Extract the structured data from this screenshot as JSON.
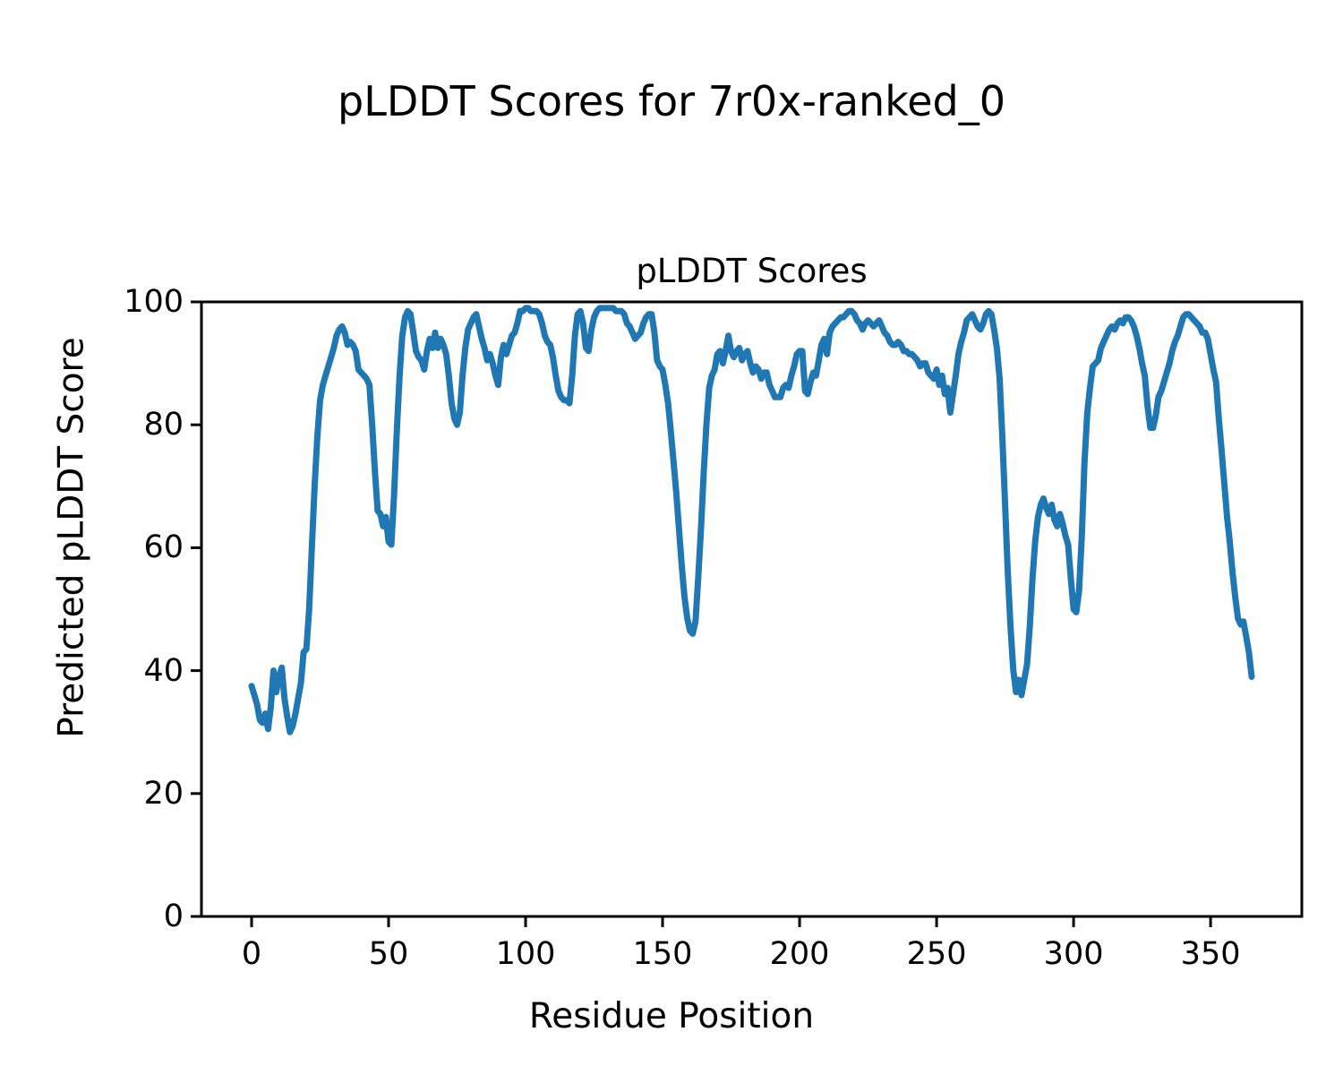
{
  "figure": {
    "suptitle": "pLDDT Scores for 7r0x-ranked_0",
    "background_color": "#ffffff",
    "text_color": "#000000"
  },
  "chart_data": {
    "type": "line",
    "title": "pLDDT Scores",
    "xlabel": "Residue Position",
    "ylabel": "Predicted pLDDT Score",
    "xlim": [
      -18.3,
      383.3
    ],
    "ylim": [
      0,
      100
    ],
    "xticks": [
      0,
      50,
      100,
      150,
      200,
      250,
      300,
      350
    ],
    "yticks": [
      0,
      20,
      40,
      60,
      80,
      100
    ],
    "grid": false,
    "legend": "none",
    "line_color": "#1f77b4",
    "spine_color": "#000000",
    "series": [
      {
        "name": "pLDDT",
        "x_start": 0,
        "x_step": 1,
        "values": [
          37.5,
          36,
          34.5,
          32,
          31.5,
          33,
          30.5,
          34,
          40,
          36.5,
          39,
          40.5,
          35.5,
          32.5,
          30,
          31,
          33,
          35.5,
          38,
          43,
          43.5,
          50,
          60,
          70,
          78,
          84,
          86.5,
          88,
          89.5,
          91,
          92.5,
          94.5,
          95.5,
          96,
          95,
          93,
          93.5,
          93,
          92,
          89,
          88.5,
          88,
          87.5,
          86.5,
          80,
          72.5,
          66,
          65.5,
          63.5,
          65,
          61,
          60.5,
          68.5,
          79,
          88,
          94.5,
          97.5,
          98.5,
          98,
          95,
          92,
          91,
          90.5,
          89,
          92,
          94,
          92.5,
          95,
          92.5,
          94,
          93,
          91.5,
          88,
          83.5,
          81,
          80,
          82,
          88,
          92.5,
          95.5,
          96.5,
          97.5,
          98,
          96,
          94,
          92.5,
          90.5,
          91.5,
          90,
          88,
          86.5,
          91,
          93,
          91.5,
          93,
          94.5,
          95,
          96.5,
          98.5,
          98.5,
          99,
          99,
          98.5,
          98.5,
          98.5,
          98,
          96.5,
          94.5,
          93.5,
          93,
          91,
          88,
          85.5,
          84.5,
          84,
          84,
          83.5,
          88,
          94.5,
          98,
          98.5,
          96.5,
          92.5,
          92,
          95.5,
          97.5,
          98.5,
          99,
          99,
          99,
          99,
          99,
          99,
          98.5,
          98.5,
          98.5,
          98,
          96.5,
          96,
          95,
          94,
          94.5,
          95,
          96.5,
          97.5,
          98,
          98,
          95,
          90.5,
          89.5,
          89,
          86.5,
          83.5,
          79,
          74,
          69,
          63,
          57,
          52,
          48.5,
          46.5,
          46,
          48,
          55,
          63,
          72,
          80,
          86,
          88,
          89,
          91.5,
          92,
          90,
          92,
          94.5,
          92,
          91,
          92,
          92.5,
          90.5,
          91.5,
          92,
          90,
          88.5,
          89.5,
          89,
          87.5,
          88.5,
          88.5,
          86.5,
          85.5,
          84.5,
          84.5,
          84.5,
          86,
          86.5,
          86,
          88,
          89.5,
          91.5,
          92,
          92,
          85.5,
          85,
          87,
          88.5,
          88,
          90.5,
          93,
          94,
          91.5,
          95,
          96,
          96.5,
          97,
          97.5,
          97.5,
          98,
          98.5,
          98.5,
          98,
          97,
          96.5,
          95.5,
          96.5,
          97,
          96.5,
          96,
          96.5,
          97,
          96,
          95,
          94.5,
          93.5,
          93,
          93,
          93.5,
          93,
          92,
          92,
          91.5,
          91.5,
          91,
          90.5,
          89.5,
          90,
          90,
          88.5,
          88,
          87.5,
          89,
          86.5,
          88,
          85,
          86,
          82,
          85,
          88,
          91.5,
          93.5,
          95,
          97,
          97.5,
          98,
          97,
          96,
          95.5,
          96.5,
          98,
          98.5,
          98,
          95.5,
          92.5,
          87.5,
          78,
          67,
          56,
          47,
          40,
          36.5,
          38.5,
          36,
          38.5,
          41,
          47,
          55,
          61,
          65,
          67,
          68,
          66.5,
          65.5,
          67,
          64.5,
          63.5,
          65.5,
          64,
          62,
          60.5,
          55,
          50,
          49.5,
          53,
          62,
          74,
          82,
          86,
          89.5,
          90,
          90.5,
          92.5,
          93.5,
          94.5,
          95.5,
          96,
          95.5,
          96.5,
          97,
          96.5,
          97.5,
          97.5,
          97,
          96,
          94.5,
          92.5,
          90,
          88,
          83,
          79.5,
          79.5,
          81.5,
          84.5,
          85.5,
          87,
          88.5,
          90,
          92,
          93.5,
          94.5,
          96,
          97.5,
          98,
          98,
          97.5,
          97,
          96.5,
          96,
          95,
          95,
          94,
          91.5,
          89,
          87,
          81,
          76,
          70.5,
          65,
          61,
          56,
          52,
          48.5,
          47.5,
          48,
          45.5,
          43,
          39
        ]
      }
    ]
  }
}
